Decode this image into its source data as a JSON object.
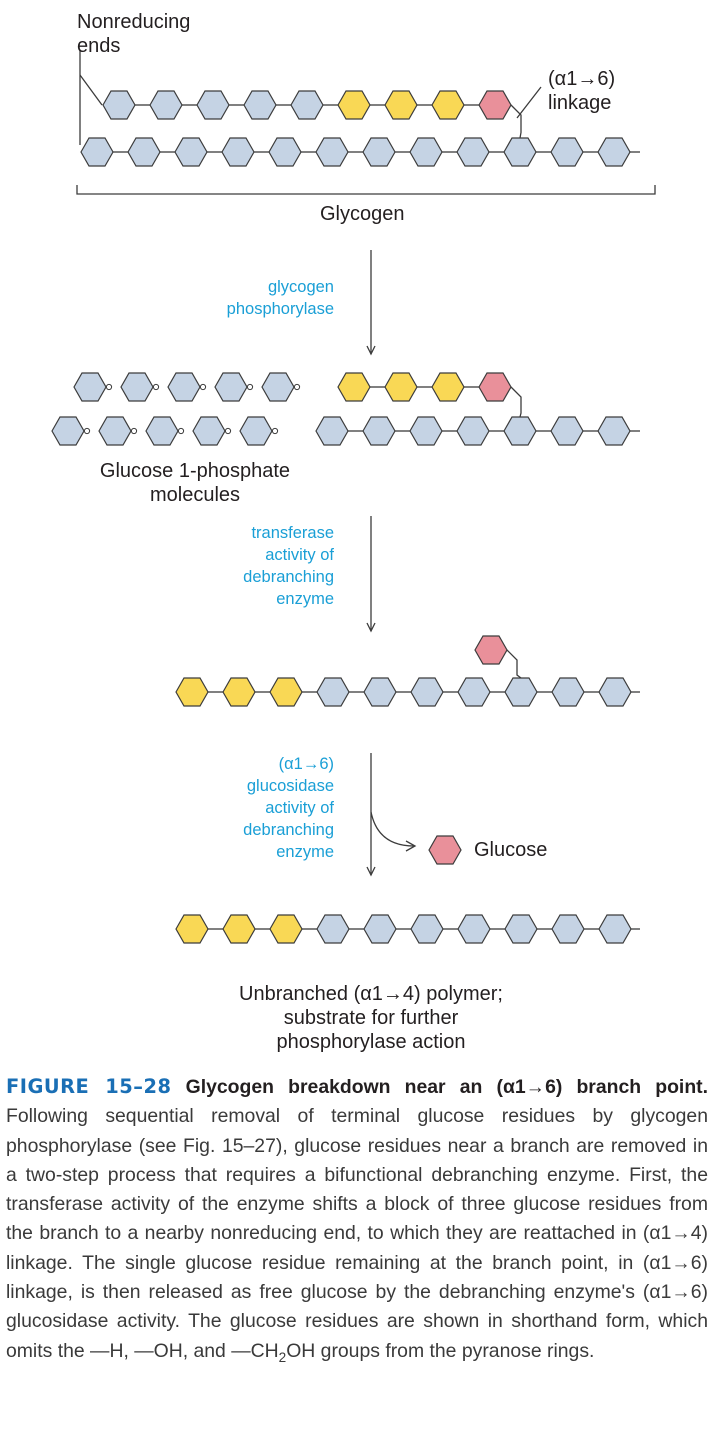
{
  "labels": {
    "nonreducing_ends": "Nonreducing\nends",
    "linkage_a16": "(α1→6)\nlinkage",
    "glycogen": "Glycogen",
    "glucose_1_phosphate": "Glucose 1-phosphate\nmolecules",
    "glucose": "Glucose",
    "unbranched_polymer": "Unbranched (α1→4) polymer;\nsubstrate for further\nphosphorylase action"
  },
  "enzymes": {
    "glycogen_phosphorylase": "glycogen\nphosphorylase",
    "transferase": "transferase\nactivity of\ndebranching\nenzyme",
    "glucosidase": "(α1→6)\nglucosidase\nactivity of\ndebranching\nenzyme"
  },
  "colors": {
    "residue": "#c5d3e4",
    "transferred_residue": "#f9d855",
    "branch_residue": "#e9909a",
    "outline": "#3c3c3c",
    "enzyme_text": "#1a9fd6",
    "figure_number": "#1a6fb5"
  },
  "caption": {
    "figure_number": "FIGURE 15–28",
    "title": "Glycogen breakdown near an (α1→6) branch point.",
    "body_pre": "Following sequential removal of terminal glucose residues by glycogen phosphorylase (see Fig. 15–27), glucose residues near a branch are removed in a two-step process that requires a bifunctional debranching enzyme. First, the transferase activity of the enzyme shifts a block of three glucose residues from the branch to a nearby nonreducing end, to which they are reattached in (α1→4) linkage. The single glucose residue remaining at the branch point, in (α1→6) linkage, is then released as free glucose by the debranching enzyme's (α1→6) glucosidase activity. The glucose residues are shown in shorthand form, which omits the —H, —OH, and —CH",
    "body_sub": "2",
    "body_post": "OH groups from the pyranose rings."
  }
}
